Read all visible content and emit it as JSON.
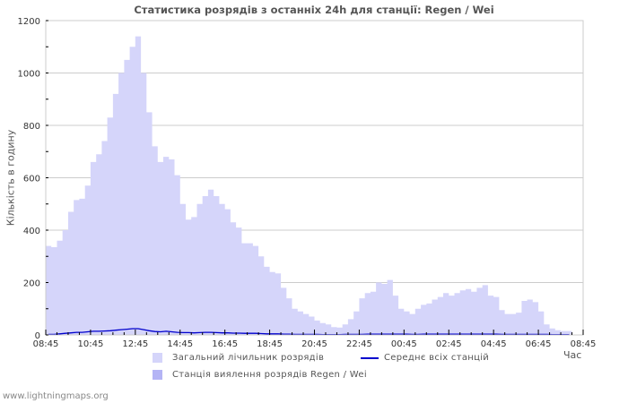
{
  "header": {
    "title": "Статистика розрядів з останніх 24h для станції: Regen / Wei"
  },
  "axes": {
    "ylabel": "Кількість в годину",
    "xlabel": "Час"
  },
  "legend": {
    "items": [
      {
        "label": "Загальний лічильник розрядів",
        "color": "#d5d5fa",
        "type": "area"
      },
      {
        "label": "Середнє всіх станцій",
        "color": "#0000cc",
        "type": "line"
      },
      {
        "label": "Станція виялення розрядів Regen / Wei",
        "color": "#b4b4f5",
        "type": "area"
      }
    ]
  },
  "footer": {
    "source": "www.lightningmaps.org"
  },
  "chart_data": {
    "type": "area",
    "title": "Статистика розрядів з останніх 24h для станції: Regen / Wei",
    "xlabel": "Час",
    "ylabel": "Кількість в годину",
    "ylim": [
      0,
      1200
    ],
    "yticks": [
      0,
      200,
      400,
      600,
      800,
      1000,
      1200
    ],
    "xticks": [
      "08:45",
      "10:45",
      "12:45",
      "14:45",
      "16:45",
      "18:45",
      "20:45",
      "22:45",
      "00:45",
      "02:45",
      "04:45",
      "06:45",
      "08:45"
    ],
    "grid": true,
    "legend_position": "bottom",
    "x_step_minutes": 15,
    "x_start": "08:45",
    "series": [
      {
        "name": "Загальний лічильник розрядів",
        "color": "#d5d5fa",
        "values": [
          340,
          335,
          360,
          400,
          470,
          515,
          520,
          570,
          660,
          690,
          740,
          830,
          920,
          1000,
          1050,
          1100,
          1140,
          1000,
          850,
          720,
          660,
          680,
          670,
          610,
          500,
          440,
          450,
          500,
          530,
          555,
          530,
          500,
          480,
          430,
          410,
          350,
          350,
          340,
          300,
          260,
          240,
          235,
          180,
          140,
          100,
          90,
          80,
          70,
          55,
          45,
          40,
          30,
          28,
          40,
          60,
          90,
          140,
          160,
          165,
          200,
          195,
          210,
          150,
          100,
          90,
          80,
          100,
          115,
          120,
          135,
          145,
          160,
          150,
          160,
          170,
          175,
          165,
          180,
          190,
          150,
          145,
          95,
          80,
          80,
          85,
          130,
          135,
          125,
          90,
          40,
          25,
          18,
          15,
          15
        ]
      },
      {
        "name": "Станція виялення розрядів Regen / Wei",
        "color": "#b4b4f5",
        "values": []
      },
      {
        "name": "Середнє всіх станцій",
        "color": "#0000cc",
        "values": [
          2,
          2,
          4,
          6,
          8,
          10,
          10,
          12,
          14,
          14,
          15,
          16,
          18,
          20,
          22,
          24,
          24,
          20,
          16,
          13,
          12,
          14,
          12,
          10,
          9,
          9,
          8,
          9,
          10,
          10,
          9,
          8,
          8,
          7,
          7,
          6,
          6,
          6,
          5,
          4,
          4,
          4,
          3,
          3,
          2,
          2,
          2,
          2,
          2,
          1,
          1,
          1,
          1,
          2,
          2,
          2,
          2,
          3,
          3,
          3,
          3,
          3,
          3,
          3,
          3,
          2,
          2,
          3,
          3,
          3,
          3,
          3,
          3,
          3,
          3,
          3,
          3,
          3,
          3,
          3,
          3,
          2,
          2,
          2,
          2,
          2,
          2,
          2,
          2,
          2,
          1,
          1,
          1,
          1
        ]
      }
    ]
  }
}
